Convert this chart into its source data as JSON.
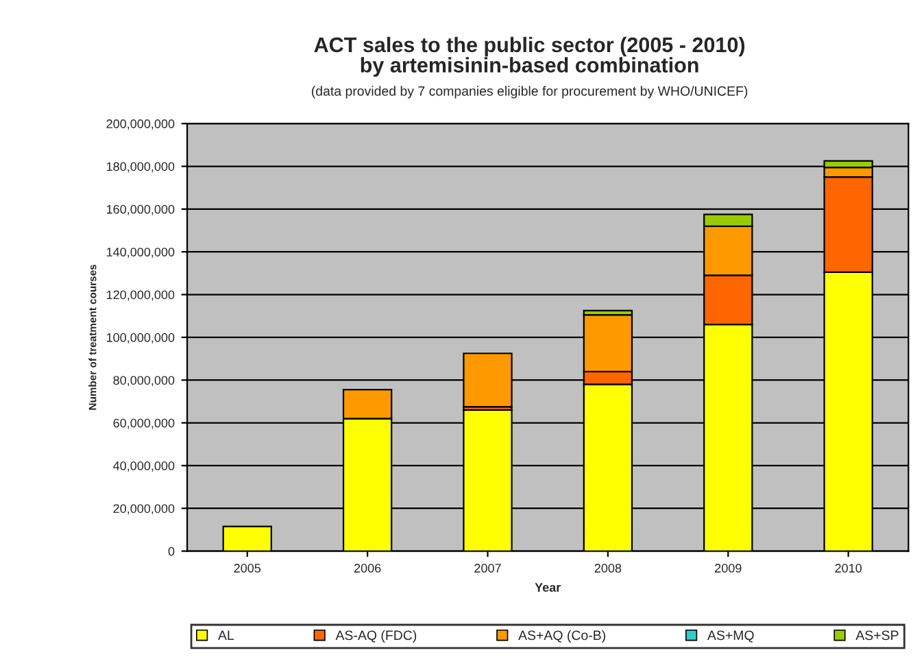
{
  "chart_data": {
    "type": "bar",
    "title": "ACT sales to the public sector (2005 - 2010)\nby artemisinin-based combination",
    "subtitle": "(data provided by 7 companies eligible for procurement by WHO/UNICEF)",
    "xlabel": "Year",
    "ylabel": "Number of treatment courses",
    "categories": [
      "2005",
      "2006",
      "2007",
      "2008",
      "2009",
      "2010"
    ],
    "stacked": true,
    "series": [
      {
        "name": "AL",
        "color": "#ffff00",
        "values": [
          11500000,
          62000000,
          66000000,
          78000000,
          106000000,
          130500000
        ]
      },
      {
        "name": "AS-AQ (FDC)",
        "color": "#ff6600",
        "values": [
          null,
          null,
          1500000,
          6000000,
          23000000,
          44500000
        ]
      },
      {
        "name": "AS+AQ (Co-B)",
        "color": "#ff9900",
        "values": [
          null,
          13500000,
          25000000,
          26500000,
          23000000,
          4500000
        ]
      },
      {
        "name": "AS+MQ",
        "color": "#33cccc",
        "values": [
          null,
          null,
          null,
          null,
          null,
          null
        ]
      },
      {
        "name": "AS+SP",
        "color": "#99cc00",
        "values": [
          null,
          null,
          null,
          2000000,
          5500000,
          3000000
        ]
      }
    ],
    "ylim": [
      0,
      200000000
    ],
    "yticks": [
      {
        "value": 0,
        "label": "0"
      },
      {
        "value": 20000000,
        "label": "20,000,000"
      },
      {
        "value": 40000000,
        "label": "40,000,000"
      },
      {
        "value": 60000000,
        "label": "60,000,000"
      },
      {
        "value": 80000000,
        "label": "80,000,000"
      },
      {
        "value": 100000000,
        "label": "100,000,000"
      },
      {
        "value": 120000000,
        "label": "120,000,000"
      },
      {
        "value": 140000000,
        "label": "140,000,000"
      },
      {
        "value": 160000000,
        "label": "160,000,000"
      },
      {
        "value": 180000000,
        "label": "180,000,000"
      },
      {
        "value": 200000000,
        "label": "200,000,000"
      }
    ],
    "grid": "y",
    "legend": "bottom"
  }
}
